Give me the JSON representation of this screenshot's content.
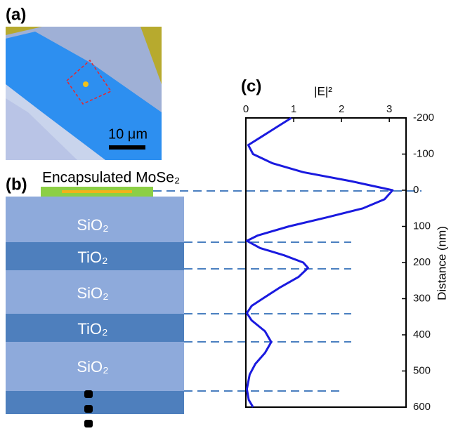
{
  "panel_labels": [
    "(a)",
    "(b)",
    "(c)"
  ],
  "scale_bar": "10 μm",
  "stack": {
    "top_layer": "Encapsulated MoSe₂",
    "layers": [
      "SiO₂",
      "TiO₂",
      "SiO₂",
      "TiO₂",
      "SiO₂"
    ]
  },
  "chart_data": {
    "type": "line",
    "x_label": "|E|²",
    "y_label": "Distance (nm)",
    "x": [
      -200,
      -175,
      -150,
      -125,
      -100,
      -75,
      -50,
      -25,
      0,
      25,
      50,
      75,
      100,
      125,
      140,
      160,
      180,
      200,
      215,
      240,
      270,
      300,
      320,
      340,
      360,
      390,
      420,
      450,
      480,
      510,
      550,
      580,
      600
    ],
    "values": [
      0.95,
      0.65,
      0.35,
      0.05,
      0.15,
      0.55,
      1.2,
      2.2,
      3.07,
      2.9,
      2.45,
      1.7,
      0.9,
      0.25,
      0.02,
      0.3,
      0.8,
      1.2,
      1.3,
      1.1,
      0.7,
      0.35,
      0.12,
      0.02,
      0.12,
      0.4,
      0.53,
      0.4,
      0.2,
      0.08,
      0.02,
      0.06,
      0.15
    ],
    "color": "#1a1adf",
    "xlim": [
      0,
      3.35
    ],
    "xticks": [
      0,
      1,
      2,
      3
    ],
    "ylim": [
      -200,
      600
    ],
    "yticks": [
      -200,
      -100,
      0,
      100,
      200,
      300,
      400,
      500,
      600
    ]
  }
}
